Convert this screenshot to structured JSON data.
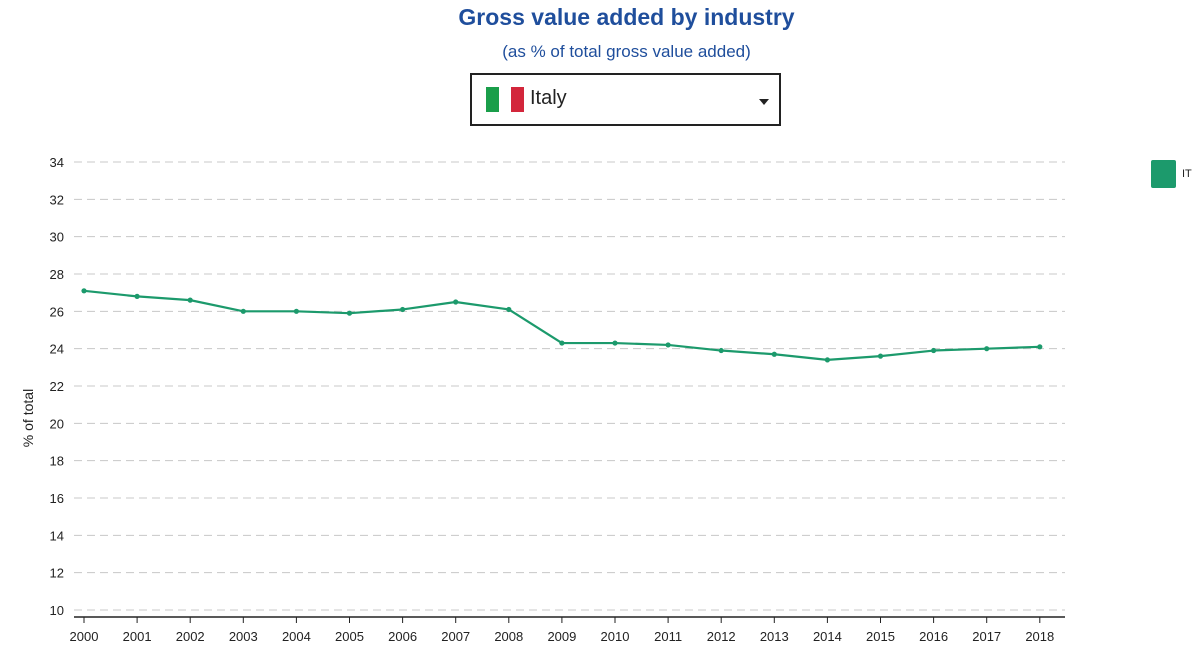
{
  "header": {
    "title": "Gross value added by industry",
    "subtitle": "(as % of total gross value added)"
  },
  "selector": {
    "country": "Italy",
    "flag_colors": [
      "#1a9e4a",
      "#ffffff",
      "#d3263b"
    ]
  },
  "legend": {
    "label": "IT",
    "color": "#1c9a6c"
  },
  "chart_data": {
    "type": "line",
    "title": "Gross value added by industry",
    "subtitle": "(as % of total gross value added)",
    "xlabel": "",
    "ylabel": "% of total",
    "ylim": [
      10,
      34
    ],
    "yticks": [
      10,
      12,
      14,
      16,
      18,
      20,
      22,
      24,
      26,
      28,
      30,
      32,
      34
    ],
    "grid": true,
    "legend_position": "top-right",
    "categories": [
      "2000",
      "2001",
      "2002",
      "2003",
      "2004",
      "2005",
      "2006",
      "2007",
      "2008",
      "2009",
      "2010",
      "2011",
      "2012",
      "2013",
      "2014",
      "2015",
      "2016",
      "2017",
      "2018"
    ],
    "series": [
      {
        "name": "IT",
        "color": "#1c9a6c",
        "values": [
          27.1,
          26.8,
          26.6,
          26.0,
          26.0,
          25.9,
          26.1,
          26.5,
          26.1,
          24.3,
          24.3,
          24.2,
          23.9,
          23.7,
          23.4,
          23.6,
          23.9,
          24.0,
          24.1
        ]
      }
    ]
  }
}
